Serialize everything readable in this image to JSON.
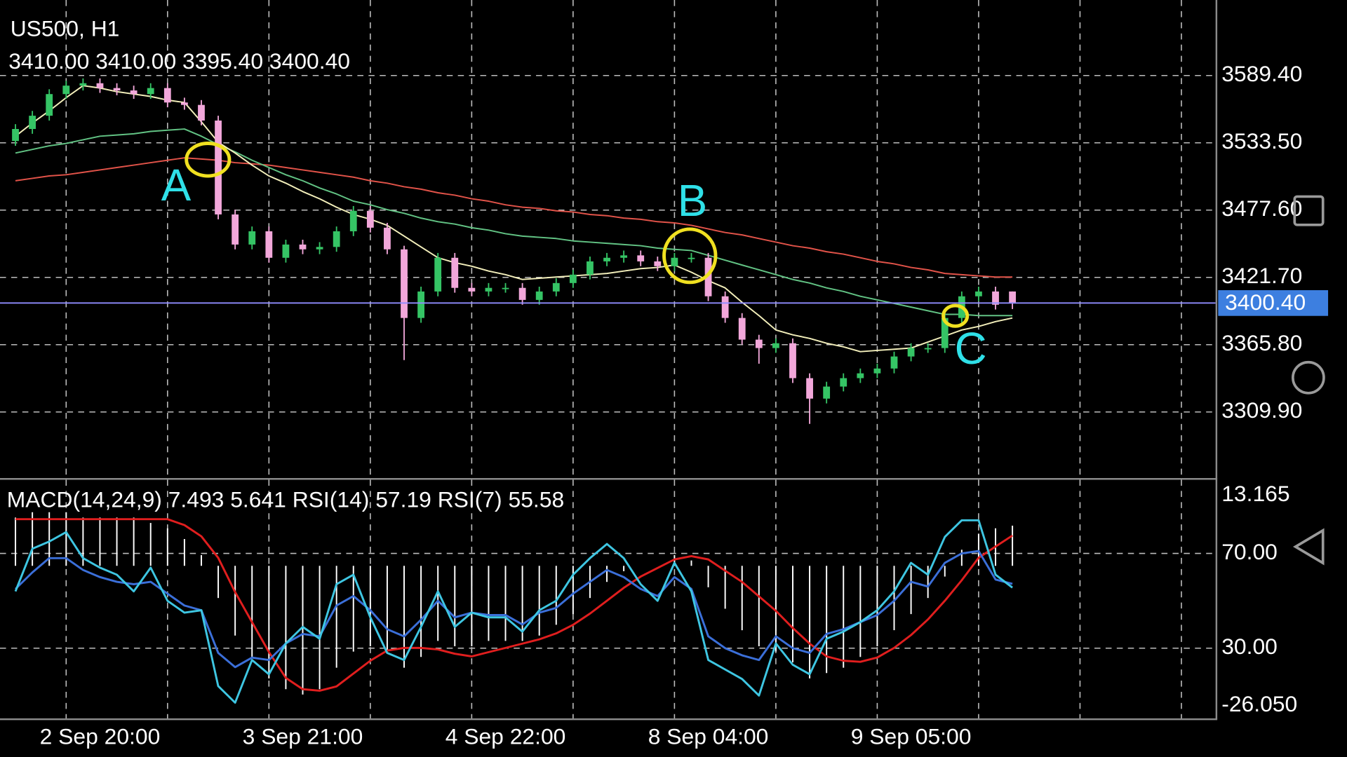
{
  "chart_data": [
    {
      "type": "candlestick",
      "title": "US500, H1",
      "subtitle": "3410.00 3410.00 3395.40 3400.40",
      "categories": [
        null,
        null,
        null,
        null,
        null,
        "2 Sep 20:00",
        null,
        null,
        null,
        null,
        null,
        null,
        null,
        null,
        null,
        null,
        null,
        "3 Sep 21:00",
        null,
        null,
        null,
        null,
        null,
        null,
        null,
        null,
        null,
        null,
        null,
        "4 Sep 22:00",
        null,
        null,
        null,
        null,
        null,
        null,
        null,
        null,
        null,
        null,
        null,
        "8 Sep 04:00",
        null,
        null,
        null,
        null,
        null,
        null,
        null,
        null,
        null,
        null,
        null,
        "9 Sep 05:00",
        null,
        null,
        null,
        null,
        null,
        null
      ],
      "open": [
        3535,
        3545,
        3556,
        3574,
        3581,
        3583,
        3579,
        3577,
        3574,
        3579,
        3567,
        3565,
        3552,
        3474,
        3449,
        3460,
        3438,
        3449,
        3445,
        3447,
        3460,
        3477,
        3463,
        3445,
        3388,
        3410,
        3438,
        3413,
        3410,
        3413,
        3413,
        3403,
        3410,
        3417,
        3424,
        3435,
        3438,
        3440,
        3435,
        3431,
        3438,
        3438,
        3406,
        3388,
        3370,
        3363,
        3367,
        3338,
        3321,
        3331,
        3338,
        3342,
        3346,
        3356,
        3363,
        3363,
        3388,
        3406,
        3410,
        3410
      ],
      "high": [
        3549,
        3560,
        3578,
        3585,
        3587,
        3587,
        3583,
        3581,
        3583,
        3583,
        3571,
        3569,
        3556,
        3478,
        3464,
        3464,
        3453,
        3453,
        3451,
        3464,
        3481,
        3481,
        3467,
        3448,
        3414,
        3442,
        3442,
        3417,
        3417,
        3417,
        3417,
        3414,
        3421,
        3428,
        3439,
        3442,
        3444,
        3444,
        3439,
        3442,
        3442,
        3442,
        3410,
        3392,
        3374,
        3371,
        3371,
        3342,
        3335,
        3342,
        3346,
        3350,
        3360,
        3367,
        3367,
        3392,
        3410,
        3414,
        3414,
        3410
      ],
      "low": [
        3531,
        3541,
        3552,
        3570,
        3577,
        3575,
        3573,
        3570,
        3570,
        3563,
        3561,
        3548,
        3470,
        3445,
        3445,
        3434,
        3434,
        3441,
        3441,
        3443,
        3456,
        3459,
        3441,
        3353,
        3384,
        3406,
        3409,
        3406,
        3406,
        3409,
        3399,
        3399,
        3406,
        3413,
        3420,
        3431,
        3434,
        3431,
        3427,
        3427,
        3434,
        3402,
        3384,
        3366,
        3350,
        3359,
        3334,
        3300,
        3317,
        3327,
        3334,
        3338,
        3342,
        3352,
        3359,
        3359,
        3384,
        3402,
        3395,
        3395.4
      ],
      "close": [
        3545,
        3556,
        3574,
        3581,
        3583,
        3579,
        3577,
        3574,
        3579,
        3567,
        3565,
        3552,
        3474,
        3449,
        3460,
        3438,
        3449,
        3445,
        3447,
        3460,
        3477,
        3463,
        3445,
        3388,
        3410,
        3438,
        3413,
        3410,
        3413,
        3413,
        3403,
        3410,
        3417,
        3424,
        3435,
        3438,
        3440,
        3435,
        3431,
        3438,
        3438,
        3406,
        3388,
        3370,
        3363,
        3367,
        3338,
        3321,
        3331,
        3338,
        3342,
        3346,
        3356,
        3363,
        3363,
        3388,
        3406,
        3410,
        3399,
        3400.4
      ],
      "up_color": "#35c465",
      "down_color": "#f2a7da",
      "series": [
        {
          "color": "#e25349",
          "values": [
            3502,
            3504,
            3506,
            3507,
            3509,
            3511,
            3513,
            3515,
            3517,
            3519,
            3521,
            3520,
            3519,
            3517,
            3516,
            3515,
            3513,
            3511,
            3509,
            3507,
            3505,
            3502,
            3500,
            3497,
            3495,
            3492,
            3490,
            3487,
            3485,
            3482,
            3480,
            3479,
            3477,
            3476,
            3474,
            3473,
            3471,
            3470,
            3468,
            3467,
            3465,
            3462,
            3459,
            3457,
            3454,
            3451,
            3448,
            3446,
            3443,
            3441,
            3438,
            3435,
            3433,
            3430,
            3428,
            3425,
            3424,
            3423,
            3422,
            3422
          ]
        },
        {
          "color": "#62c384",
          "values": [
            3525,
            3528,
            3531,
            3533,
            3536,
            3539,
            3540,
            3541,
            3543,
            3544,
            3545,
            3539,
            3532,
            3526,
            3519,
            3513,
            3507,
            3502,
            3496,
            3491,
            3485,
            3482,
            3478,
            3475,
            3471,
            3468,
            3466,
            3463,
            3461,
            3458,
            3456,
            3455,
            3454,
            3452,
            3451,
            3450,
            3449,
            3448,
            3446,
            3445,
            3444,
            3440,
            3436,
            3432,
            3428,
            3424,
            3420,
            3417,
            3413,
            3410,
            3406,
            3403,
            3400,
            3397,
            3394,
            3391,
            3391,
            3390,
            3390,
            3390
          ]
        },
        {
          "color": "#f3efbb",
          "values": [
            3539,
            3550,
            3560,
            3571,
            3581,
            3579,
            3576,
            3574,
            3572,
            3569,
            3567,
            3551,
            3534,
            3525,
            3515,
            3506,
            3500,
            3493,
            3487,
            3480,
            3474,
            3470,
            3465,
            3456,
            3447,
            3438,
            3434,
            3431,
            3427,
            3424,
            3420,
            3421,
            3422,
            3423,
            3424,
            3425,
            3427,
            3429,
            3430,
            3432,
            3426,
            3419,
            3413,
            3401,
            3390,
            3378,
            3374,
            3371,
            3367,
            3364,
            3360,
            3361,
            3362,
            3363,
            3368,
            3373,
            3378,
            3381,
            3385,
            3388
          ]
        }
      ],
      "ylim": [
        3255.0,
        3652.15
      ],
      "yticks": [
        {
          "value": 3589.4,
          "label": "3589.40"
        },
        {
          "value": 3533.5,
          "label": "3533.50"
        },
        {
          "value": 3477.6,
          "label": "3477.60"
        },
        {
          "value": 3421.7,
          "label": "3421.70"
        },
        {
          "value": 3365.8,
          "label": "3365.80"
        },
        {
          "value": 3309.9,
          "label": "3309.90"
        }
      ],
      "grid": true,
      "current_price": {
        "value": 3400.4,
        "label": "3400.40",
        "color": "#8f8cff",
        "label_color": "#3d7fe0"
      },
      "annotations": [
        "A",
        "B",
        "C"
      ],
      "annotation_color": "#2fe0e8"
    },
    {
      "type": "indicator",
      "title": "MACD(14,24,9) 7.493 5.641 RSI(14) 57.19 RSI(7) 55.58",
      "ylim": [
        -28.61,
        15.57
      ],
      "yticks": [
        13.165,
        {
          "value": -26.05,
          "label": "-26.050"
        }
      ],
      "y2lim": [
        0,
        100
      ],
      "y2ticks": [
        {
          "value": 70,
          "label": "70.00"
        },
        {
          "value": 30,
          "label": "30.00"
        }
      ],
      "grid": true,
      "series": [
        {
          "type": "bar",
          "color": "#ffffff",
          "values": [
            9,
            10,
            10,
            10,
            9,
            9,
            9,
            9,
            8,
            7,
            5,
            2,
            -6,
            -13,
            -17,
            -21,
            -23,
            -24,
            -23,
            -19,
            -16,
            -15,
            -16,
            -19,
            -17,
            -14,
            -15,
            -15,
            -14,
            -14,
            -14,
            -13,
            -11,
            -9,
            -6,
            -3,
            -1,
            0,
            0,
            2,
            1,
            -4,
            -8,
            -12,
            -15,
            -16,
            -18,
            -21,
            -20,
            -19,
            -17,
            -15,
            -12,
            -9,
            -6,
            -2,
            3,
            6,
            7,
            7.493
          ]
        },
        {
          "type": "line",
          "color": "#e01e1e",
          "values": [
            8.7,
            8.7,
            8.7,
            8.7,
            8.7,
            8.7,
            8.7,
            8.7,
            8.7,
            8.7,
            7.6,
            5.5,
            1.5,
            -4.9,
            -10.5,
            -16.1,
            -20.9,
            -23.0,
            -23.3,
            -22.5,
            -20.1,
            -17.7,
            -15.8,
            -15.3,
            -15.3,
            -15.6,
            -16.4,
            -16.9,
            -16.1,
            -15.3,
            -14.5,
            -13.7,
            -12.6,
            -11.0,
            -8.9,
            -6.5,
            -4.1,
            -2.0,
            -0.4,
            1.2,
            1.8,
            1.2,
            -0.9,
            -3.0,
            -5.7,
            -8.4,
            -11.6,
            -14.5,
            -16.9,
            -17.7,
            -17.9,
            -17.1,
            -15.3,
            -12.9,
            -10.0,
            -6.5,
            -2.7,
            1.5,
            3.6,
            5.641
          ]
        },
        {
          "type": "line",
          "axis": "y2",
          "color": "#3b6fd9",
          "values": [
            55,
            62,
            68,
            68,
            63,
            60,
            58,
            57,
            58,
            53,
            48,
            46,
            28,
            22,
            26,
            25,
            32,
            36,
            35,
            48,
            52,
            46,
            38,
            35,
            42,
            50,
            43,
            45,
            44,
            44,
            40,
            45,
            47,
            53,
            58,
            63,
            60,
            55,
            52,
            60,
            55,
            35,
            30,
            27,
            25,
            35,
            30,
            28,
            36,
            38,
            41,
            44,
            50,
            58,
            56,
            66,
            70,
            71,
            59,
            57.19
          ]
        },
        {
          "type": "line",
          "axis": "y2",
          "color": "#3ec6e2",
          "values": [
            54,
            72,
            75,
            79,
            68,
            64,
            61,
            54,
            64,
            50,
            45,
            46,
            14,
            7,
            25,
            19,
            32,
            39,
            34,
            57,
            61,
            43,
            28,
            25,
            39,
            54,
            39,
            45,
            43,
            43,
            37,
            46,
            50,
            61,
            68,
            74,
            68,
            57,
            50,
            66,
            54,
            25,
            21,
            17,
            10,
            32,
            23,
            19,
            34,
            37,
            41,
            46,
            54,
            66,
            61,
            77,
            84,
            84,
            61,
            55.58
          ]
        }
      ]
    }
  ]
}
